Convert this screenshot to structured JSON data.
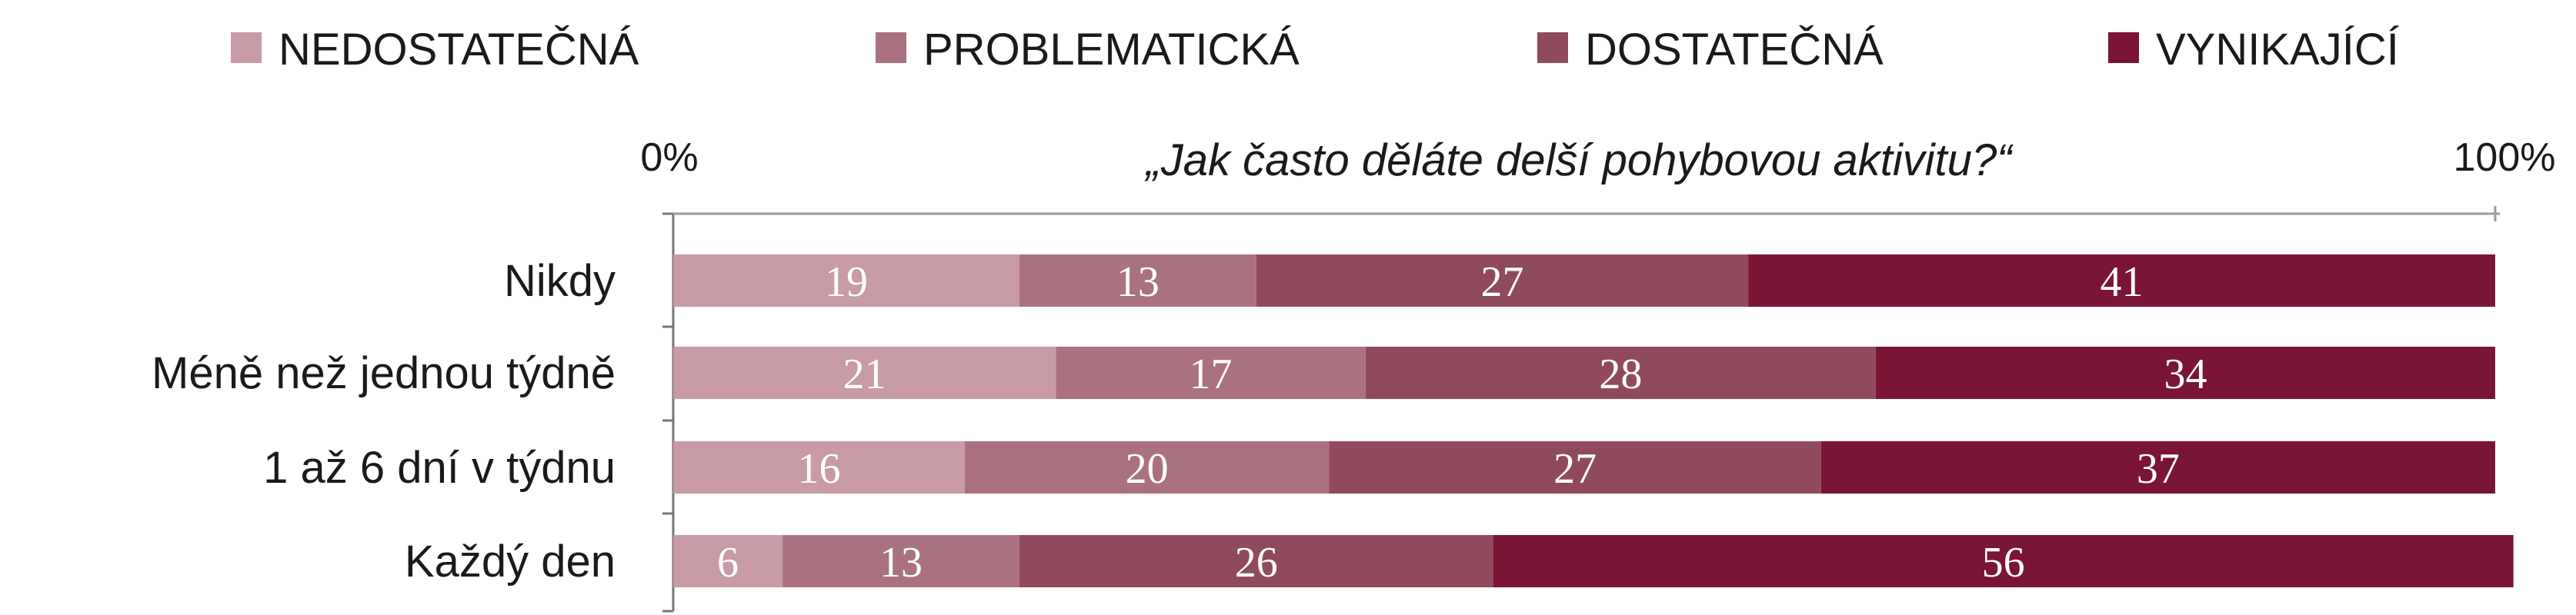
{
  "chart_data": {
    "type": "bar",
    "orientation": "horizontal",
    "stacked": true,
    "title": "„Jak často děláte delší pohybovou aktivitu?“",
    "x_tick_labels": [
      "0%",
      "100%"
    ],
    "xlim": [
      0,
      100
    ],
    "legend_position": "top",
    "categories": [
      "Nikdy",
      "Méně než jednou týdně",
      "1 až 6 dní v týdnu",
      "Každý den"
    ],
    "series": [
      {
        "name": "NEDOSTATEČNÁ",
        "color": "#c89ba6",
        "values": [
          19,
          21,
          16,
          6
        ]
      },
      {
        "name": "PROBLEMATICKÁ",
        "color": "#aa7281",
        "values": [
          13,
          17,
          20,
          13
        ]
      },
      {
        "name": "DOSTATEČNÁ",
        "color": "#904a5e",
        "values": [
          27,
          28,
          27,
          26
        ]
      },
      {
        "name": "VYNIKAJÍCÍ",
        "color": "#7a1535",
        "values": [
          41,
          34,
          37,
          56
        ]
      }
    ]
  }
}
